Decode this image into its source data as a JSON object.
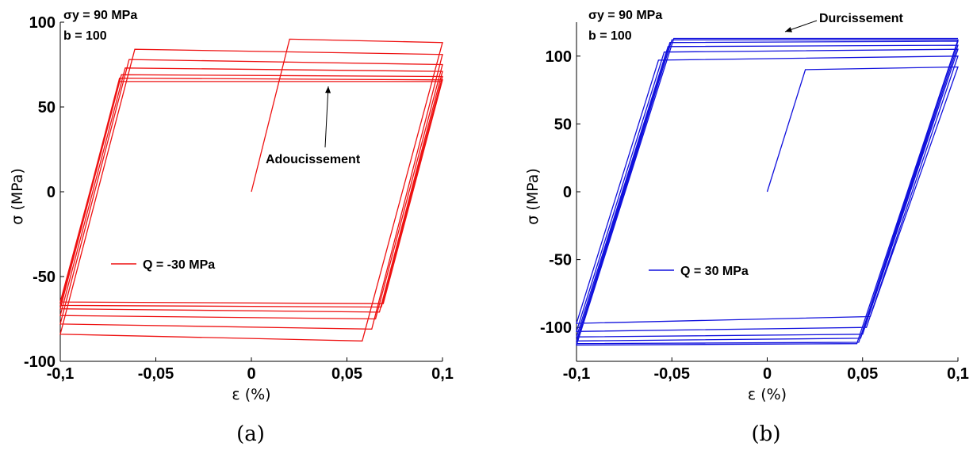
{
  "chart_data": [
    {
      "type": "line",
      "caption": "(a)",
      "xlabel": "ε (%)",
      "ylabel": "σ (MPa)",
      "xlim": [
        -0.1,
        0.1
      ],
      "ylim": [
        -100,
        100
      ],
      "xticks": [
        "-0,1",
        "-0,05",
        "0",
        "0,05",
        "0,1"
      ],
      "yticks": [
        "-100",
        "-50",
        "0",
        "50",
        "100"
      ],
      "params": [
        "σy = 90 MPa",
        "b = 100"
      ],
      "annotation": "Adoucissement",
      "color": "#ee1111",
      "series": [
        {
          "name": "Q = -30 MPa",
          "x": [
            0,
            0.02,
            0.1,
            0.058,
            -0.1,
            -0.061,
            0.1,
            0.063,
            -0.1,
            -0.064,
            0.1,
            0.065,
            -0.1,
            -0.066,
            0.1,
            0.067,
            -0.1,
            -0.068,
            0.1,
            0.068,
            -0.1,
            -0.069,
            0.1,
            0.069,
            -0.1,
            -0.069,
            0.1
          ],
          "y": [
            0,
            90,
            88,
            -88,
            -84,
            84,
            81,
            -81,
            -78,
            78,
            75,
            -75,
            -73,
            73,
            71,
            -71,
            -69,
            69,
            68,
            -68,
            -67,
            67,
            66,
            -66,
            -65,
            65,
            65
          ]
        }
      ]
    },
    {
      "type": "line",
      "caption": "(b)",
      "xlabel": "ε (%)",
      "ylabel": "σ (MPa)",
      "xlim": [
        -0.1,
        0.1
      ],
      "ylim": [
        -125,
        125
      ],
      "xticks": [
        "-0,1",
        "-0,05",
        "0",
        "0,05",
        "0,1"
      ],
      "yticks": [
        "-100",
        "-50",
        "0",
        "50",
        "100"
      ],
      "params": [
        "σy = 90 MPa",
        "b = 100"
      ],
      "annotation": "Durcissement",
      "color": "#1111dd",
      "series": [
        {
          "name": "Q = 30 MPa",
          "x": [
            0,
            0.02,
            0.1,
            0.054,
            -0.1,
            -0.057,
            0.1,
            0.052,
            -0.1,
            -0.054,
            0.1,
            0.05,
            -0.1,
            -0.052,
            0.1,
            0.049,
            -0.1,
            -0.051,
            0.1,
            0.048,
            -0.1,
            -0.05,
            0.1,
            0.047,
            -0.1,
            -0.049,
            0.1
          ],
          "y": [
            0,
            90,
            92,
            -92,
            -97,
            97,
            100,
            -100,
            -103,
            103,
            105,
            -105,
            -107,
            107,
            108,
            -108,
            -110,
            110,
            111,
            -111,
            -112,
            112,
            112,
            -112,
            -113,
            113,
            113
          ]
        }
      ]
    }
  ]
}
